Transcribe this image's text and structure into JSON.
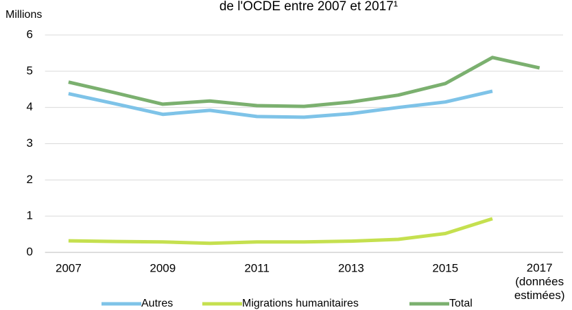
{
  "chart_data": {
    "type": "line",
    "title": "de l'OCDE entre 2007 et 2017¹",
    "y_label": "Millions",
    "categories": [
      "2007",
      null,
      "2009",
      null,
      "2011",
      null,
      "2013",
      null,
      "2015",
      null,
      "2017 (données estimées)"
    ],
    "series": [
      {
        "name": "Autres",
        "color": "#7ec3e8",
        "values": [
          4.38,
          4.1,
          3.81,
          3.92,
          3.75,
          3.73,
          3.83,
          4.0,
          4.15,
          4.45,
          null
        ]
      },
      {
        "name": "Migrations humanitaires",
        "color": "#c5e04f",
        "values": [
          0.32,
          0.3,
          0.29,
          0.25,
          0.29,
          0.29,
          0.31,
          0.36,
          0.52,
          0.93,
          null
        ]
      },
      {
        "name": "Total",
        "color": "#7bb06f",
        "values": [
          4.7,
          4.4,
          4.09,
          4.18,
          4.05,
          4.03,
          4.15,
          4.34,
          4.66,
          5.38,
          5.09
        ]
      }
    ],
    "ylim": [
      0,
      6
    ],
    "yticks": [
      0,
      1,
      2,
      3,
      4,
      5,
      6
    ],
    "grid": true,
    "legend": "bottom"
  }
}
